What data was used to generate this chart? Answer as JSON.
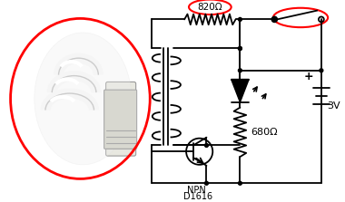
{
  "bg_color": "#ffffff",
  "line_color": "#000000",
  "red_color": "#ff0000",
  "labels": {
    "820ohm": "820Ω",
    "680ohm": "680Ω",
    "3V": "3V",
    "transistor_line1": "D1616",
    "transistor_line2": "NPN",
    "plus": "+"
  },
  "figsize": [
    3.8,
    2.23
  ],
  "dpi": 100
}
